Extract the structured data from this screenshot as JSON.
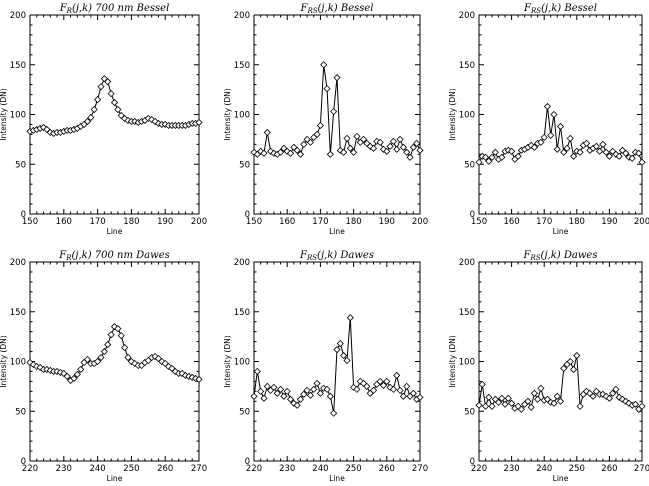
{
  "chart_data": [
    {
      "type": "line",
      "title": "F_R(j,k) 700 nm Bessel",
      "title_main": "F",
      "title_sub": "R",
      "title_rest": "(j,k) 700 nm Bessel",
      "xlabel": "Line",
      "ylabel": "Intensity (DN)",
      "xlim": [
        150,
        200
      ],
      "ylim": [
        0,
        200
      ],
      "xticks": [
        150,
        160,
        170,
        180,
        190,
        200
      ],
      "yticks": [
        0,
        50,
        100,
        150,
        200
      ],
      "marker": "diamond",
      "series": [
        {
          "x": [
            150,
            151,
            152,
            153,
            154,
            155,
            156,
            157,
            158,
            159,
            160,
            161,
            162,
            163,
            164,
            165,
            166,
            167,
            168,
            169,
            170,
            171,
            172,
            173,
            174,
            175,
            176,
            177,
            178,
            179,
            180,
            181,
            182,
            183,
            184,
            185,
            186,
            187,
            188,
            189,
            190,
            191,
            192,
            193,
            194,
            195,
            196,
            197,
            198,
            199,
            200
          ],
          "y": [
            83,
            84,
            85,
            86,
            87,
            85,
            82,
            81,
            82,
            82,
            83,
            84,
            84,
            85,
            86,
            88,
            90,
            93,
            97,
            105,
            115,
            128,
            136,
            133,
            121,
            112,
            105,
            99,
            96,
            94,
            93,
            93,
            92,
            93,
            94,
            96,
            95,
            93,
            91,
            90,
            90,
            89,
            89,
            89,
            89,
            89,
            89,
            90,
            91,
            91,
            92
          ]
        }
      ]
    },
    {
      "type": "line",
      "title": "F_RS(j,k) Bessel",
      "title_main": "F",
      "title_sub": "RS",
      "title_rest": "(j,k) Bessel",
      "xlabel": "Line",
      "ylabel": "Intensity (DN)",
      "xlim": [
        150,
        200
      ],
      "ylim": [
        0,
        200
      ],
      "xticks": [
        150,
        160,
        170,
        180,
        190,
        200
      ],
      "yticks": [
        0,
        50,
        100,
        150,
        200
      ],
      "marker": "diamond",
      "series": [
        {
          "x": [
            150,
            151,
            152,
            153,
            154,
            155,
            156,
            157,
            158,
            159,
            160,
            161,
            162,
            163,
            164,
            165,
            166,
            167,
            168,
            169,
            170,
            171,
            172,
            173,
            174,
            175,
            176,
            177,
            178,
            179,
            180,
            181,
            182,
            183,
            184,
            185,
            186,
            187,
            188,
            189,
            190,
            191,
            192,
            193,
            194,
            195,
            196,
            197,
            198,
            199,
            200
          ],
          "y": [
            62,
            60,
            63,
            61,
            82,
            63,
            61,
            60,
            62,
            66,
            63,
            61,
            67,
            64,
            60,
            70,
            75,
            72,
            77,
            80,
            89,
            150,
            126,
            60,
            103,
            137,
            64,
            62,
            76,
            66,
            62,
            78,
            72,
            75,
            71,
            68,
            66,
            73,
            72,
            65,
            63,
            68,
            73,
            65,
            75,
            67,
            62,
            57,
            67,
            71,
            64
          ]
        }
      ]
    },
    {
      "type": "line",
      "title": "F_RS(j,k) Bessel",
      "title_main": "F",
      "title_sub": "RS",
      "title_rest": "(j,k) Bessel",
      "xlabel": "Line",
      "ylabel": "Intensity (DN)",
      "xlim": [
        150,
        200
      ],
      "ylim": [
        0,
        200
      ],
      "xticks": [
        150,
        160,
        170,
        180,
        190,
        200
      ],
      "yticks": [
        0,
        50,
        100,
        150,
        200
      ],
      "marker": "diamond",
      "series": [
        {
          "x": [
            150,
            151,
            152,
            153,
            154,
            155,
            156,
            157,
            158,
            159,
            160,
            161,
            162,
            163,
            164,
            165,
            166,
            167,
            168,
            169,
            170,
            171,
            172,
            173,
            174,
            175,
            176,
            177,
            178,
            179,
            180,
            181,
            182,
            183,
            184,
            185,
            186,
            187,
            188,
            189,
            190,
            191,
            192,
            193,
            194,
            195,
            196,
            197,
            198,
            199,
            200
          ],
          "y": [
            52,
            58,
            57,
            53,
            57,
            62,
            55,
            57,
            63,
            64,
            63,
            55,
            58,
            64,
            65,
            67,
            69,
            67,
            71,
            72,
            77,
            108,
            79,
            100,
            65,
            88,
            62,
            66,
            76,
            58,
            63,
            62,
            69,
            71,
            64,
            66,
            68,
            63,
            70,
            62,
            58,
            63,
            60,
            58,
            64,
            61,
            57,
            56,
            62,
            61,
            52
          ]
        }
      ]
    },
    {
      "type": "line",
      "title": "F_R(j,k) 700 nm Dawes",
      "title_main": "F",
      "title_sub": "R",
      "title_rest": "(j,k) 700 nm Dawes",
      "xlabel": "Line",
      "ylabel": "Intensity (DN)",
      "xlim": [
        220,
        270
      ],
      "ylim": [
        0,
        200
      ],
      "xticks": [
        220,
        230,
        240,
        250,
        260,
        270
      ],
      "yticks": [
        0,
        50,
        100,
        150,
        200
      ],
      "marker": "diamond",
      "series": [
        {
          "x": [
            220,
            221,
            222,
            223,
            224,
            225,
            226,
            227,
            228,
            229,
            230,
            231,
            232,
            233,
            234,
            235,
            236,
            237,
            238,
            239,
            240,
            241,
            242,
            243,
            244,
            245,
            246,
            247,
            248,
            249,
            250,
            251,
            252,
            253,
            254,
            255,
            256,
            257,
            258,
            259,
            260,
            261,
            262,
            263,
            264,
            265,
            266,
            267,
            268,
            269,
            270
          ],
          "y": [
            99,
            97,
            95,
            94,
            92,
            92,
            91,
            90,
            90,
            89,
            88,
            85,
            81,
            83,
            87,
            92,
            99,
            102,
            98,
            98,
            100,
            104,
            110,
            117,
            127,
            135,
            133,
            126,
            114,
            104,
            100,
            98,
            96,
            96,
            99,
            101,
            104,
            105,
            103,
            100,
            98,
            95,
            93,
            90,
            88,
            88,
            86,
            85,
            84,
            83,
            82
          ]
        }
      ]
    },
    {
      "type": "line",
      "title": "F_RS(j,k) Dawes",
      "title_main": "F",
      "title_sub": "RS",
      "title_rest": "(j,k) Dawes",
      "xlabel": "Line",
      "ylabel": "Intensity (DN)",
      "xlim": [
        220,
        270
      ],
      "ylim": [
        0,
        200
      ],
      "xticks": [
        220,
        230,
        240,
        250,
        260,
        270
      ],
      "yticks": [
        0,
        50,
        100,
        150,
        200
      ],
      "marker": "diamond",
      "series": [
        {
          "x": [
            220,
            221,
            222,
            223,
            224,
            225,
            226,
            227,
            228,
            229,
            230,
            231,
            232,
            233,
            234,
            235,
            236,
            237,
            238,
            239,
            240,
            241,
            242,
            243,
            244,
            245,
            246,
            247,
            248,
            249,
            250,
            251,
            252,
            253,
            254,
            255,
            256,
            257,
            258,
            259,
            260,
            261,
            262,
            263,
            264,
            265,
            266,
            267,
            268,
            269,
            270
          ],
          "y": [
            65,
            90,
            70,
            63,
            75,
            71,
            74,
            68,
            72,
            65,
            70,
            62,
            58,
            56,
            62,
            67,
            71,
            66,
            72,
            78,
            68,
            73,
            72,
            65,
            48,
            112,
            118,
            106,
            101,
            144,
            74,
            72,
            80,
            78,
            75,
            68,
            71,
            77,
            80,
            76,
            80,
            74,
            72,
            86,
            71,
            65,
            75,
            65,
            68,
            62,
            64
          ]
        }
      ]
    },
    {
      "type": "line",
      "title": "F_RS(j,k) Dawes",
      "title_main": "F",
      "title_sub": "RS",
      "title_rest": "(j,k) Dawes",
      "xlabel": "Line",
      "ylabel": "Intensity (DN)",
      "xlim": [
        220,
        270
      ],
      "ylim": [
        0,
        200
      ],
      "xticks": [
        220,
        230,
        240,
        250,
        260,
        270
      ],
      "yticks": [
        0,
        50,
        100,
        150,
        200
      ],
      "marker": "diamond",
      "series": [
        {
          "x": [
            220,
            221,
            222,
            223,
            224,
            225,
            226,
            227,
            228,
            229,
            230,
            231,
            232,
            233,
            234,
            235,
            236,
            237,
            238,
            239,
            240,
            241,
            242,
            243,
            244,
            245,
            246,
            247,
            248,
            249,
            250,
            251,
            252,
            253,
            254,
            255,
            256,
            257,
            258,
            259,
            260,
            261,
            262,
            263,
            264,
            265,
            266,
            267,
            268,
            269,
            270
          ],
          "y": [
            56,
            77,
            55,
            64,
            55,
            62,
            59,
            63,
            57,
            63,
            58,
            53,
            55,
            52,
            57,
            60,
            54,
            68,
            62,
            73,
            61,
            62,
            59,
            58,
            65,
            60,
            93,
            97,
            100,
            92,
            106,
            55,
            67,
            70,
            68,
            65,
            70,
            67,
            67,
            65,
            63,
            68,
            72,
            64,
            62,
            60,
            58,
            56,
            57,
            52,
            55
          ]
        }
      ]
    }
  ]
}
